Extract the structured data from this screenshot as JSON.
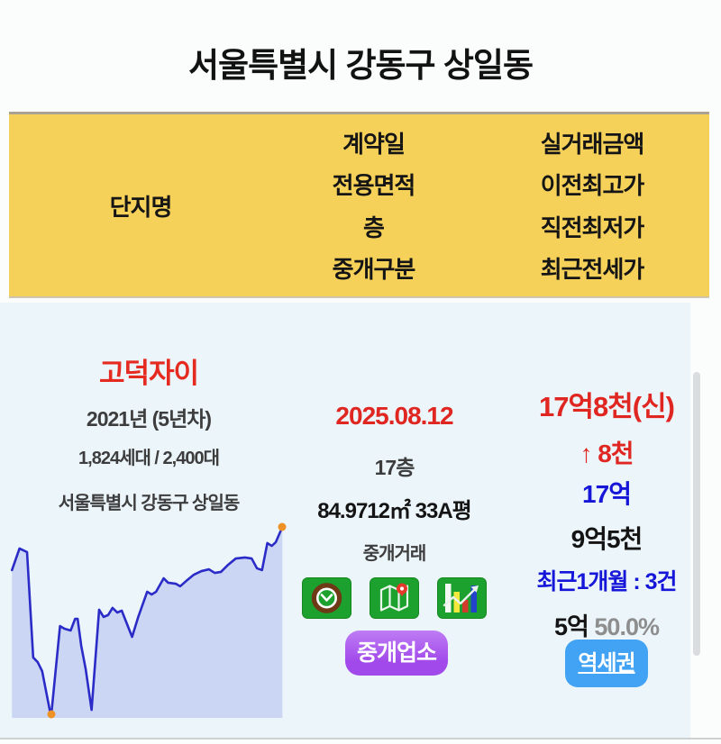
{
  "page": {
    "title": "서울특별시 강동구 상일동"
  },
  "table_header": {
    "complex_label": "단지명",
    "mid_labels": [
      "계약일",
      "전용면적",
      "층",
      "중개구분"
    ],
    "right_labels": [
      "실거래금액",
      "이전최고가",
      "직전최저가",
      "최근전세가"
    ]
  },
  "listing": {
    "complex_name": "고덕자이",
    "built_year": "2021년 (5년차)",
    "households": "1,824세대 / 2,400대",
    "address": "서울특별시 강동구 상일동",
    "contract_date": "2025.08.12",
    "floor": "17층",
    "area": "84.9712㎡ 33A평",
    "deal_type": "중개거래",
    "broker_button_label": "중개업소",
    "price": "17억8천(신)",
    "price_change": "↑ 8천",
    "previous_high": "17억",
    "previous_low": "9억5천",
    "recent_count": "최근1개월 : 3건",
    "jeonse_price": "5억",
    "jeonse_ratio": "50.0%",
    "station_button_label": "역세권"
  },
  "icons": {
    "clock": "clock-icon",
    "map": "map-pin-icon",
    "chart": "bar-chart-trend-icon"
  },
  "colors": {
    "header_yellow": "#F5D15A",
    "card_background": "#EBF5FA",
    "accent_red": "#E02620",
    "accent_blue": "#1616D9",
    "muted_gray": "#8E8E8E",
    "icon_green": "#1CA02E",
    "broker_purple": "#A855EC",
    "station_blue": "#42A3F5",
    "chart_line": "#2B2BC8",
    "chart_fill": "#CAD6F3",
    "chart_marker_orange": "#EF9226"
  },
  "chart_data": {
    "type": "line",
    "title": "",
    "xlabel": "",
    "ylabel": "",
    "axes_shown": false,
    "grid": false,
    "legend": "none",
    "note": "price trend sparkline, area filled below line; coordinates are percent of plot box, y=0 top, y=100 bottom",
    "points": [
      [
        1.7,
        26.1
      ],
      [
        4.4,
        15.3
      ],
      [
        7.1,
        17.1
      ],
      [
        9.3,
        69.8
      ],
      [
        10.9,
        72.1
      ],
      [
        12.5,
        76.6
      ],
      [
        15.7,
        99.5
      ],
      [
        18.9,
        54.1
      ],
      [
        20.5,
        55.4
      ],
      [
        22.7,
        56.3
      ],
      [
        24.3,
        50.5
      ],
      [
        25.2,
        50.5
      ],
      [
        26.5,
        64.0
      ],
      [
        28.1,
        75.7
      ],
      [
        30.2,
        96.0
      ],
      [
        32.9,
        45.9
      ],
      [
        34.5,
        49.5
      ],
      [
        36.1,
        48.6
      ],
      [
        37.7,
        45.0
      ],
      [
        39.4,
        47.3
      ],
      [
        41.0,
        46.4
      ],
      [
        44.7,
        59.5
      ],
      [
        46.9,
        49.5
      ],
      [
        50.1,
        36.9
      ],
      [
        51.7,
        38.3
      ],
      [
        53.3,
        36.9
      ],
      [
        56.0,
        30.2
      ],
      [
        57.6,
        32.4
      ],
      [
        60.3,
        32.9
      ],
      [
        61.9,
        34.2
      ],
      [
        64.1,
        31.5
      ],
      [
        66.8,
        28.4
      ],
      [
        69.5,
        26.6
      ],
      [
        72.2,
        25.7
      ],
      [
        74.3,
        27.5
      ],
      [
        76.5,
        27.0
      ],
      [
        79.1,
        23.4
      ],
      [
        81.8,
        20.3
      ],
      [
        85.1,
        19.8
      ],
      [
        87.5,
        20.3
      ],
      [
        89.4,
        25.2
      ],
      [
        91.2,
        26.1
      ],
      [
        93.1,
        12.6
      ],
      [
        94.7,
        14.0
      ],
      [
        96.1,
        12.2
      ],
      [
        98.5,
        4.5
      ]
    ],
    "markers": [
      {
        "x": 15.7,
        "y": 99.5
      },
      {
        "x": 98.5,
        "y": 4.5
      }
    ]
  }
}
